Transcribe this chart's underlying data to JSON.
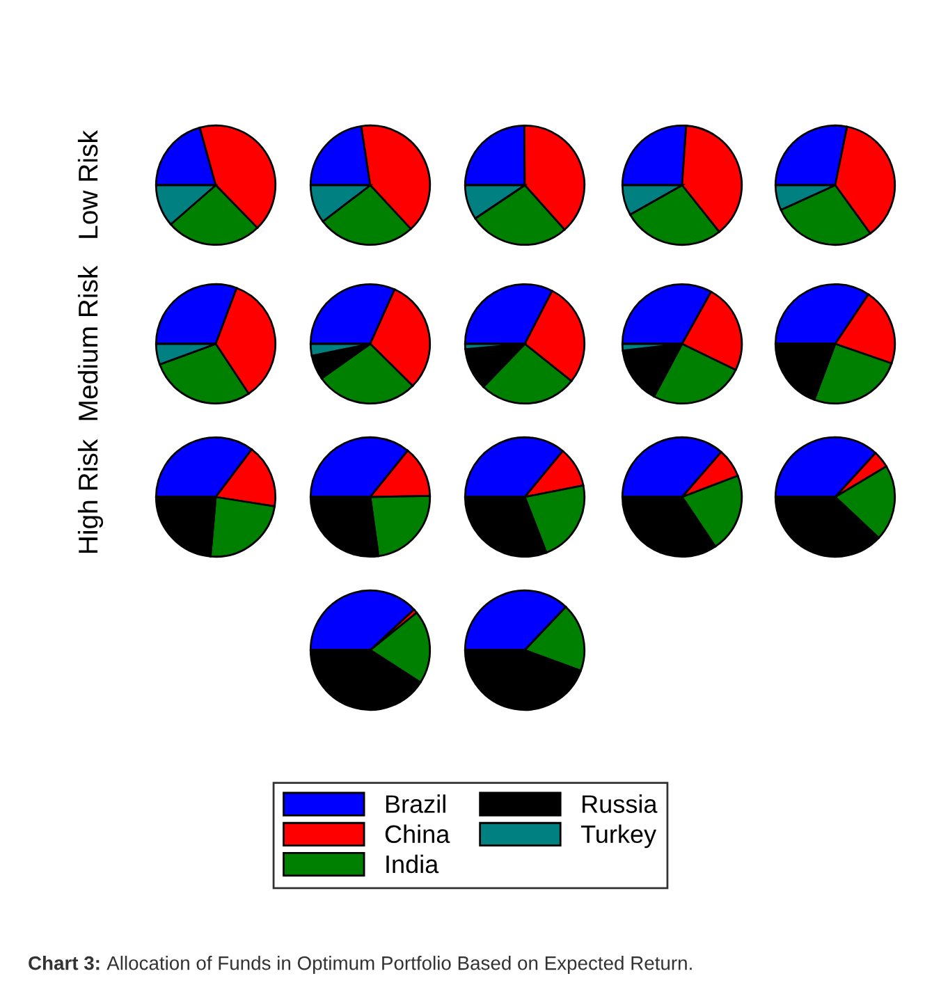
{
  "chart_data": [
    {
      "type": "pie",
      "legend": "bottom",
      "annotations": [
        "Low Risk"
      ],
      "categories": [
        "Brazil",
        "China",
        "India",
        "Russia",
        "Turkey"
      ],
      "values": [
        20.7,
        42.0,
        25.9,
        0,
        11.4
      ],
      "colors": [
        "#0000ff",
        "#ff0000",
        "#008000",
        "#000000",
        "#008080"
      ]
    },
    {
      "type": "pie",
      "categories": [
        null,
        null,
        null,
        null,
        null
      ],
      "values": [
        22.6,
        40.5,
        26.5,
        0,
        10.4
      ],
      "colors": [
        "#0000ff",
        "#ff0000",
        "#008000",
        "#000000",
        "#008080"
      ]
    },
    {
      "type": "pie",
      "categories": [
        null,
        null,
        null,
        null,
        null
      ],
      "values": [
        24.9,
        38.5,
        27.2,
        0,
        9.4
      ],
      "colors": [
        "#0000ff",
        "#ff0000",
        "#008000",
        "#000000",
        "#008080"
      ]
    },
    {
      "type": "pie",
      "categories": [
        null,
        null,
        null,
        null,
        null
      ],
      "values": [
        26.1,
        38.2,
        27.5,
        0,
        8.2
      ],
      "colors": [
        "#0000ff",
        "#ff0000",
        "#008000",
        "#000000",
        "#008080"
      ]
    },
    {
      "type": "pie",
      "categories": [
        null,
        null,
        null,
        null,
        null
      ],
      "values": [
        28.2,
        36.8,
        28.2,
        0,
        6.8
      ],
      "colors": [
        "#0000ff",
        "#ff0000",
        "#008000",
        "#000000",
        "#008080"
      ]
    },
    {
      "type": "pie",
      "annotations": [
        "Medium Risk"
      ],
      "categories": [
        null,
        null,
        null,
        null,
        null
      ],
      "values": [
        30.7,
        35.0,
        28.7,
        0,
        5.6
      ],
      "colors": [
        "#0000ff",
        "#ff0000",
        "#008000",
        "#000000",
        "#008080"
      ]
    },
    {
      "type": "pie",
      "categories": [
        null,
        null,
        null,
        null,
        null
      ],
      "values": [
        31.7,
        30.7,
        27.8,
        6.6,
        3.2
      ],
      "colors": [
        "#0000ff",
        "#ff0000",
        "#008000",
        "#000000",
        "#008080"
      ]
    },
    {
      "type": "pie",
      "categories": [
        null,
        null,
        null,
        null,
        null
      ],
      "values": [
        32.6,
        28.1,
        26.5,
        11.4,
        1.4
      ],
      "colors": [
        "#0000ff",
        "#ff0000",
        "#008000",
        "#000000",
        "#008080"
      ]
    },
    {
      "type": "pie",
      "categories": [
        null,
        null,
        null,
        null,
        null
      ],
      "values": [
        33.1,
        24.1,
        25.6,
        15.4,
        1.8
      ],
      "colors": [
        "#0000ff",
        "#ff0000",
        "#008000",
        "#000000",
        "#008080"
      ]
    },
    {
      "type": "pie",
      "categories": [
        null,
        null,
        null,
        null,
        null
      ],
      "values": [
        34.4,
        20.9,
        25.4,
        19.3,
        0
      ],
      "colors": [
        "#0000ff",
        "#ff0000",
        "#008000",
        "#000000",
        "#008080"
      ]
    },
    {
      "type": "pie",
      "annotations": [
        "High Risk"
      ],
      "categories": [
        null,
        null,
        null,
        null,
        null
      ],
      "values": [
        35.3,
        17.2,
        23.9,
        23.6,
        0
      ],
      "colors": [
        "#0000ff",
        "#ff0000",
        "#008000",
        "#000000",
        "#008080"
      ]
    },
    {
      "type": "pie",
      "categories": [
        null,
        null,
        null,
        null,
        null
      ],
      "values": [
        35.8,
        13.9,
        23.1,
        27.2,
        0
      ],
      "colors": [
        "#0000ff",
        "#ff0000",
        "#008000",
        "#000000",
        "#008080"
      ]
    },
    {
      "type": "pie",
      "categories": [
        null,
        null,
        null,
        null,
        null
      ],
      "values": [
        36.0,
        10.9,
        22.2,
        30.9,
        0
      ],
      "colors": [
        "#0000ff",
        "#ff0000",
        "#008000",
        "#000000",
        "#008080"
      ]
    },
    {
      "type": "pie",
      "categories": [
        null,
        null,
        null,
        null,
        null
      ],
      "values": [
        36.4,
        7.8,
        21.4,
        34.4,
        0
      ],
      "colors": [
        "#0000ff",
        "#ff0000",
        "#008000",
        "#000000",
        "#008080"
      ]
    },
    {
      "type": "pie",
      "categories": [
        null,
        null,
        null,
        null,
        null
      ],
      "values": [
        36.8,
        4.6,
        20.6,
        38.0,
        0
      ],
      "colors": [
        "#0000ff",
        "#ff0000",
        "#008000",
        "#000000",
        "#008080"
      ]
    },
    {
      "type": "pie",
      "categories": [
        null,
        null,
        null,
        null,
        null
      ],
      "values": [
        38.1,
        1.1,
        19.9,
        40.9,
        0
      ],
      "colors": [
        "#0000ff",
        "#ff0000",
        "#008000",
        "#000000",
        "#008080"
      ]
    },
    {
      "type": "pie",
      "annotations": [
        "Chart 3:",
        "Allocation of Funds in Optimum Portfolio Based on Expected Return."
      ],
      "categories": [
        null,
        null,
        null,
        null,
        null
      ],
      "values": [
        37.1,
        0,
        18.5,
        44.4,
        0
      ],
      "colors": [
        "#0000ff",
        "#ff0000",
        "#008000",
        "#000000",
        "#008080"
      ]
    }
  ]
}
